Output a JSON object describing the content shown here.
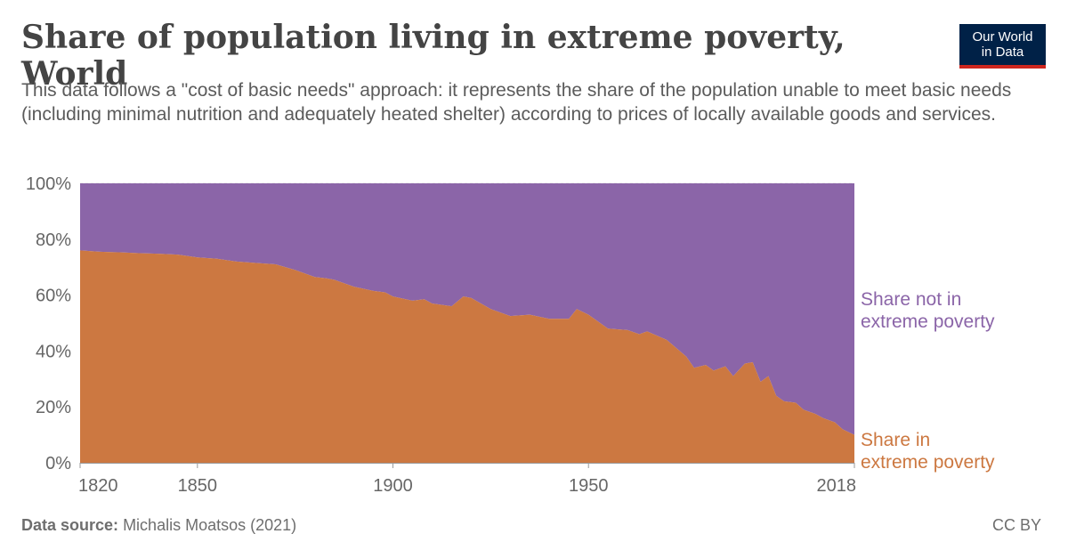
{
  "header": {
    "title": "Share of population living in extreme poverty, World",
    "subtitle": "This data follows a \"cost of basic needs\" approach: it represents the share of the population unable to meet basic needs (including minimal nutrition and adequately heated shelter) according to prices of locally available goods and services.",
    "logo_line1": "Our World",
    "logo_line2": "in Data"
  },
  "footer": {
    "source_label": "Data source:",
    "source_value": "Michalis Moatsos (2021)",
    "license": "CC BY"
  },
  "chart_data": {
    "type": "area",
    "stacked": true,
    "title": "Share of population living in extreme poverty, World",
    "xlabel": "",
    "ylabel": "",
    "xlim": [
      1820,
      2018
    ],
    "ylim": [
      0,
      100
    ],
    "y_ticks": [
      {
        "value": 0,
        "label": "0%"
      },
      {
        "value": 20,
        "label": "20%"
      },
      {
        "value": 40,
        "label": "40%"
      },
      {
        "value": 60,
        "label": "60%"
      },
      {
        "value": 80,
        "label": "80%"
      },
      {
        "value": 100,
        "label": "100%"
      }
    ],
    "x_ticks": [
      {
        "value": 1820,
        "label": "1820"
      },
      {
        "value": 1850,
        "label": "1850"
      },
      {
        "value": 1900,
        "label": "1900"
      },
      {
        "value": 1950,
        "label": "1950"
      },
      {
        "value": 2018,
        "label": "2018"
      }
    ],
    "grid": true,
    "legend": "right",
    "x": [
      1820,
      1825,
      1830,
      1835,
      1840,
      1845,
      1850,
      1855,
      1860,
      1865,
      1870,
      1875,
      1880,
      1883,
      1885,
      1890,
      1895,
      1898,
      1900,
      1905,
      1908,
      1910,
      1915,
      1918,
      1920,
      1925,
      1930,
      1935,
      1940,
      1945,
      1947,
      1950,
      1955,
      1960,
      1963,
      1965,
      1970,
      1975,
      1977,
      1980,
      1982,
      1985,
      1987,
      1990,
      1992,
      1994,
      1996,
      1998,
      2000,
      2003,
      2005,
      2008,
      2010,
      2013,
      2015,
      2018
    ],
    "series": [
      {
        "name": "Share in extreme poverty",
        "color": "#cc7841",
        "values": [
          76,
          75.5,
          75.3,
          75,
          74.8,
          74.5,
          73.5,
          73,
          72,
          71.5,
          71,
          69,
          66.5,
          66,
          65.5,
          63,
          61.5,
          61,
          59.5,
          58,
          58.5,
          57,
          56,
          59.5,
          59,
          55,
          52.5,
          53,
          51.5,
          51.5,
          55,
          53,
          48,
          47.5,
          46,
          47,
          44,
          38,
          34,
          35,
          33,
          34.5,
          31,
          35.5,
          36,
          29,
          31,
          24,
          22,
          21.5,
          19,
          17.5,
          16,
          14.5,
          12,
          10
        ]
      },
      {
        "name": "Share not in extreme poverty",
        "color": "#8b65a8",
        "values": [
          24,
          24.5,
          24.7,
          25,
          25.2,
          25.5,
          26.5,
          27,
          28,
          28.5,
          29,
          31,
          33.5,
          34,
          34.5,
          37,
          38.5,
          39,
          40.5,
          42,
          41.5,
          43,
          44,
          40.5,
          41,
          45,
          47.5,
          47,
          48.5,
          48.5,
          45,
          47,
          52,
          52.5,
          54,
          53,
          56,
          62,
          66,
          65,
          67,
          65.5,
          69,
          64.5,
          64,
          71,
          69,
          76,
          78,
          78.5,
          81,
          82.5,
          84,
          85.5,
          88,
          90
        ]
      }
    ]
  }
}
